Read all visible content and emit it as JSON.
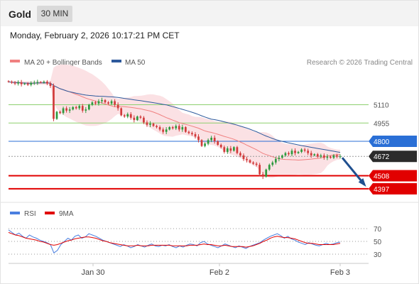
{
  "header": {
    "title": "Gold",
    "timeframe": "30 MIN"
  },
  "datetime": "Monday, February 2, 2026 10:17:21 PM CET",
  "legend": {
    "ma20_label": "MA 20 + Bollinger Bands",
    "ma50_label": "MA 50",
    "credit": "Research © 2026 Trading Central"
  },
  "rsi_legend": {
    "rsi_label": "RSI",
    "ma_label": "9MA"
  },
  "colors": {
    "ma20": "#f08080",
    "ma50": "#2e5a9c",
    "band": "#fadadd",
    "up": "#2d9a3e",
    "down": "#d13b3b",
    "green_level": "#8dd06f",
    "blue_level": "#2a6fd6",
    "red_level": "#e10000",
    "rsi": "#4a7fe0",
    "rsi_ma": "#e10000"
  },
  "chart_data": {
    "type": "candlestick",
    "title": "Gold",
    "xlabel": "",
    "ylabel": "",
    "ylim": [
      4330,
      5330
    ],
    "x_ticks": [
      "Jan 30",
      "Feb 2",
      "Feb 3"
    ],
    "levels": [
      {
        "label": "5110",
        "value": 5110,
        "style": "resistance",
        "box": false
      },
      {
        "label": "4955",
        "value": 4955,
        "style": "resistance",
        "box": false
      },
      {
        "label": "4800",
        "value": 4800,
        "style": "pivot",
        "box": true
      },
      {
        "label": "4672",
        "value": 4672,
        "style": "last",
        "box": true
      },
      {
        "label": "4508",
        "value": 4508,
        "style": "support",
        "box": true
      },
      {
        "label": "4397",
        "value": 4397,
        "style": "support",
        "box": true
      }
    ],
    "closes": [
      5305,
      5298,
      5290,
      5300,
      5285,
      5290,
      5280,
      5295,
      5298,
      5302,
      5300,
      5305,
      5290,
      5270,
      4990,
      5050,
      5040,
      5080,
      5060,
      5070,
      5090,
      5080,
      5100,
      5060,
      5070,
      5110,
      5130,
      5120,
      5140,
      5150,
      5130,
      5120,
      5140,
      5110,
      5080,
      5020,
      5010,
      5030,
      5000,
      4980,
      5010,
      5000,
      4960,
      4940,
      4950,
      4930,
      4920,
      4900,
      4880,
      4900,
      4920,
      4910,
      4930,
      4900,
      4920,
      4880,
      4870,
      4860,
      4840,
      4810,
      4760,
      4780,
      4810,
      4830,
      4800,
      4770,
      4750,
      4710,
      4740,
      4720,
      4750,
      4700,
      4680,
      4650,
      4640,
      4620,
      4610,
      4600,
      4520,
      4500,
      4560,
      4600,
      4620,
      4650,
      4660,
      4680,
      4700,
      4690,
      4720,
      4700,
      4710,
      4730,
      4720,
      4700,
      4680,
      4690,
      4670,
      4680,
      4660,
      4670,
      4660,
      4680,
      4670,
      4672
    ],
    "rsi": {
      "ylim": [
        20,
        80
      ],
      "ticks": [
        70,
        50,
        30
      ],
      "rsi_values": [
        68,
        64,
        60,
        63,
        58,
        55,
        60,
        57,
        55,
        52,
        50,
        48,
        45,
        32,
        36,
        45,
        50,
        55,
        52,
        58,
        60,
        55,
        57,
        62,
        60,
        58,
        55,
        52,
        50,
        48,
        46,
        44,
        42,
        45,
        43,
        40,
        42,
        45,
        43,
        41,
        44,
        46,
        43,
        42,
        44,
        43,
        45,
        42,
        40,
        43,
        41,
        44,
        46,
        45,
        43,
        48,
        50,
        46,
        44,
        42,
        40,
        43,
        46,
        44,
        42,
        40,
        43,
        41,
        39,
        42,
        44,
        46,
        48,
        52,
        55,
        58,
        60,
        62,
        59,
        55,
        58,
        54,
        52,
        49,
        47,
        45,
        48,
        46,
        44,
        43,
        45,
        47,
        45,
        46,
        48,
        49
      ],
      "ma_values": [
        64,
        62,
        60,
        59,
        57,
        55,
        54,
        53,
        52,
        50,
        49,
        47,
        45,
        44,
        45,
        47,
        49,
        51,
        52,
        54,
        55,
        56,
        57,
        57,
        56,
        55,
        53,
        51,
        50,
        48,
        47,
        46,
        45,
        44,
        43,
        43,
        43,
        44,
        43,
        43,
        43,
        44,
        44,
        44,
        44,
        44,
        44,
        43,
        43,
        43,
        43,
        43,
        44,
        44,
        44,
        45,
        46,
        45,
        45,
        44,
        43,
        43,
        44,
        43,
        42,
        42,
        42,
        42,
        41,
        42,
        43,
        45,
        47,
        50,
        52,
        55,
        57,
        58,
        57,
        56,
        56,
        55,
        54,
        52,
        50,
        48,
        47,
        47,
        46,
        45,
        45,
        45,
        45,
        45,
        46,
        47
      ]
    },
    "projection": {
      "from": 4672,
      "to": 4397,
      "style": "arrow"
    }
  }
}
